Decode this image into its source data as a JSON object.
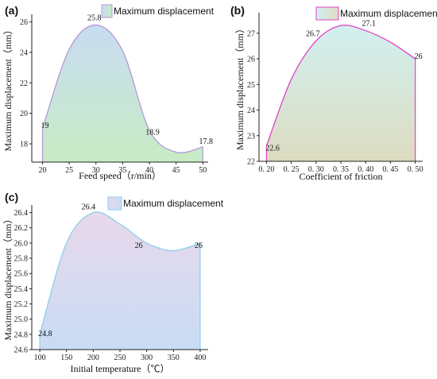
{
  "chart_data": [
    {
      "type": "area",
      "panel_label": "(a)",
      "xlabel": "Feed speed（r/min）",
      "ylabel": "Maximum displacement（mm）",
      "xlim": [
        18,
        51
      ],
      "ylim": [
        16.8,
        26.5
      ],
      "xticks": [
        20,
        25,
        30,
        35,
        40,
        45,
        50
      ],
      "yticks": [
        18,
        20,
        22,
        24,
        26
      ],
      "legend": "Maximum displacement",
      "legend_position": "top-right",
      "grid": false,
      "colors": {
        "stroke": "#b49ad8",
        "top": "#c8dcf2",
        "bottom": "#c8ecc4"
      },
      "series": [
        {
          "name": "Maximum displacement",
          "x": [
            20,
            30,
            40,
            50
          ],
          "values": [
            19,
            25.8,
            18.9,
            17.8
          ],
          "labels": [
            "19",
            "25.8",
            "18.9",
            "17.8"
          ]
        }
      ]
    },
    {
      "type": "area",
      "panel_label": "(b)",
      "xlabel": "Coefficient of friction",
      "ylabel": "Maximum displacement（mm）",
      "xlim": [
        0.185,
        0.515
      ],
      "ylim": [
        22,
        27.8
      ],
      "xticks": [
        0.2,
        0.25,
        0.3,
        0.35,
        0.4,
        0.45,
        0.5
      ],
      "xtick_labels": [
        "0. 20",
        "0. 25",
        "0. 30",
        "0. 35",
        "0. 40",
        "0. 45",
        "0. 50"
      ],
      "yticks": [
        22,
        23,
        24,
        25,
        26,
        27
      ],
      "legend": "Maximum displacement",
      "legend_position": "top-right",
      "grid": false,
      "colors": {
        "stroke": "#e040c8",
        "top": "#d2f0f0",
        "bottom": "#dcdcc0"
      },
      "series": [
        {
          "name": "Maximum displacement",
          "x": [
            0.2,
            0.3,
            0.4,
            0.5
          ],
          "values": [
            22.6,
            26.7,
            27.1,
            26
          ],
          "labels": [
            "22.6",
            "26.7",
            "27.1",
            "26"
          ]
        }
      ]
    },
    {
      "type": "area",
      "panel_label": "(c)",
      "xlabel": "Initial temperature（℃）",
      "ylabel": "Maximum displacement（mm）",
      "xlim": [
        85,
        415
      ],
      "ylim": [
        24.6,
        26.5
      ],
      "xticks": [
        100,
        150,
        200,
        250,
        300,
        350,
        400
      ],
      "yticks": [
        24.6,
        24.8,
        25.0,
        25.2,
        25.4,
        25.6,
        25.8,
        26.0,
        26.2,
        26.4
      ],
      "ytick_labels": [
        "24.6",
        "24.8",
        "25.0",
        "25.2",
        "25.4",
        "25.6",
        "25.8",
        "26.0",
        "26.2",
        "26.4"
      ],
      "legend": "Maximum displacement",
      "legend_position": "top-right",
      "grid": false,
      "colors": {
        "stroke": "#8ccfe8",
        "top": "#e8d8ec",
        "bottom": "#c8dcf4"
      },
      "series": [
        {
          "name": "Maximum displacement",
          "x": [
            100,
            200,
            300,
            400
          ],
          "values": [
            24.8,
            26.4,
            26,
            26
          ],
          "labels": [
            "24.8",
            "26.4",
            "26",
            "26"
          ]
        }
      ]
    }
  ]
}
